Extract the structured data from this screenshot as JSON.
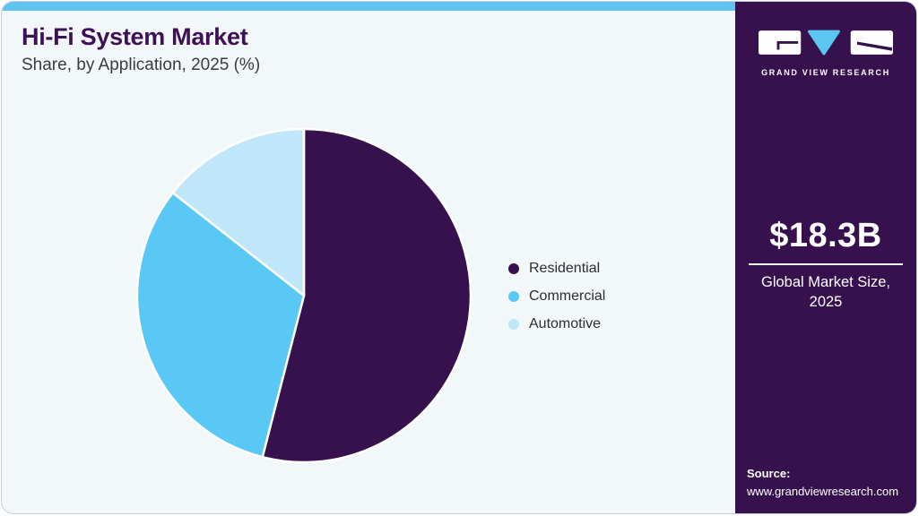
{
  "header": {
    "title": "Hi-Fi System Market",
    "subtitle": "Share, by Application, 2025 (%)"
  },
  "chart_data": {
    "type": "pie",
    "title": "Hi-Fi System Market Share, by Application, 2025 (%)",
    "categories": [
      "Residential",
      "Commercial",
      "Automotive"
    ],
    "values": [
      54.0,
      31.6,
      14.4
    ],
    "unit": "percent of market share",
    "colors": [
      "#36114e",
      "#5ac8f5",
      "#bfe7f9"
    ],
    "legend_position": "right",
    "start_angle_deg": 0,
    "direction": "clockwise",
    "slice_border_color": "#ffffff"
  },
  "sidebar": {
    "brand": "GRAND VIEW RESEARCH",
    "market_size_value": "$18.3B",
    "market_size_label_line1": "Global Market Size,",
    "market_size_label_line2": "2025",
    "source_label": "Source:",
    "source_url": "www.grandviewresearch.com"
  },
  "theme": {
    "top_accent_bar": "#62c3ee",
    "card_background": "#f2f7fa",
    "title_color": "#3e1055",
    "sidebar_background": "#36114e",
    "logo_accent": "#5bc6f0"
  }
}
